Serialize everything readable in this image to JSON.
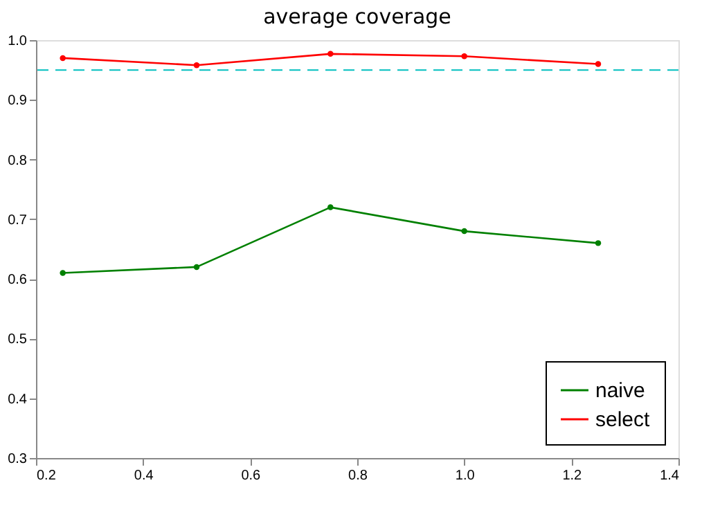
{
  "chart_data": {
    "type": "line",
    "title": "average coverage",
    "x": [
      0.25,
      0.5,
      0.75,
      1.0,
      1.25
    ],
    "series": [
      {
        "name": "naive",
        "color": "#008000",
        "values": [
          0.61,
          0.62,
          0.72,
          0.68,
          0.66
        ]
      },
      {
        "name": "select",
        "color": "#ff0000",
        "values": [
          0.97,
          0.958,
          0.977,
          0.973,
          0.96
        ]
      }
    ],
    "xlim": [
      0.2,
      1.4
    ],
    "xticks": [
      0.2,
      0.4,
      0.6,
      0.8,
      {
        "value": 1.0,
        "label": "1.0"
      },
      1.2,
      1.4
    ],
    "ylim": [
      0.3,
      1.0
    ],
    "yticks": [
      0.3,
      0.4,
      0.5,
      0.6,
      0.7,
      0.8,
      0.9,
      {
        "value": 1.0,
        "label": "1.0"
      }
    ],
    "ref_lines": [
      {
        "axis": "y",
        "value": 0.95,
        "color": "#00bfbf",
        "line_style": "dashed"
      }
    ],
    "marker": "circle",
    "line_style": "solid",
    "grid": false,
    "legend": "bottom right"
  }
}
